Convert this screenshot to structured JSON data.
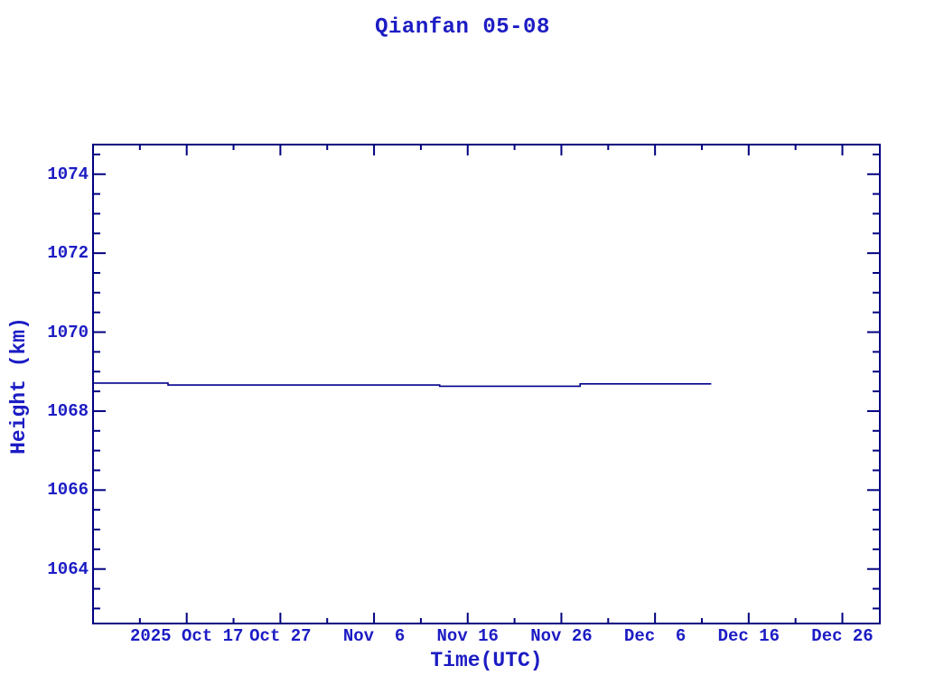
{
  "page": {
    "background": "#ffffff"
  },
  "chart_data": {
    "type": "line",
    "title": "Qianfan 05-08",
    "xlabel": "Time(UTC)",
    "ylabel": "Height (km)",
    "x_range_dates": [
      "2025-10-07",
      "2025-12-30"
    ],
    "ylim": [
      1062.62,
      1074.75
    ],
    "y_major_ticks": [
      1064,
      1066,
      1068,
      1070,
      1072,
      1074
    ],
    "y_minor_step": 0.5,
    "x_major_ticks": [
      {
        "date": "2025-10-17",
        "label": "2025 Oct 17"
      },
      {
        "date": "2025-10-27",
        "label": "Oct 27"
      },
      {
        "date": "2025-11-06",
        "label": "Nov  6"
      },
      {
        "date": "2025-11-16",
        "label": "Nov 16"
      },
      {
        "date": "2025-11-26",
        "label": "Nov 26"
      },
      {
        "date": "2025-12-06",
        "label": "Dec  6"
      },
      {
        "date": "2025-12-16",
        "label": "Dec 16"
      },
      {
        "date": "2025-12-26",
        "label": "Dec 26"
      }
    ],
    "x_minor_step_days": 5,
    "series": [
      {
        "name": "Qianfan 05-08 height",
        "points": [
          {
            "date": "2025-10-07",
            "km": 1068.71
          },
          {
            "date": "2025-10-15",
            "km": 1068.71
          },
          {
            "date": "2025-10-15",
            "km": 1068.66
          },
          {
            "date": "2025-11-13",
            "km": 1068.66
          },
          {
            "date": "2025-11-13",
            "km": 1068.63
          },
          {
            "date": "2025-11-28",
            "km": 1068.63
          },
          {
            "date": "2025-11-28",
            "km": 1068.69
          },
          {
            "date": "2025-12-12",
            "km": 1068.69
          }
        ]
      }
    ],
    "colors": {
      "axis": "#000080",
      "line": "#00008b",
      "text": "#1c1cc4",
      "background": "#ffffff"
    },
    "grid": false,
    "legend": false
  }
}
